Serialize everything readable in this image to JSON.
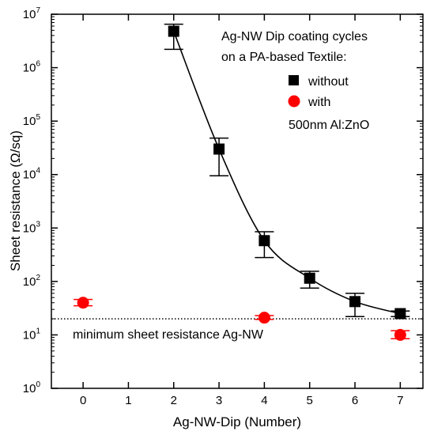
{
  "chart_data": {
    "type": "scatter",
    "xlabel": "Ag-NW-Dip (Number)",
    "ylabel": "Sheet resistance (Ω/sq)",
    "x_ticks": [
      "0",
      "1",
      "2",
      "3",
      "4",
      "5",
      "6",
      "7"
    ],
    "y_ticks": [
      {
        "base": "10",
        "exp": "0"
      },
      {
        "base": "10",
        "exp": "1"
      },
      {
        "base": "10",
        "exp": "2"
      },
      {
        "base": "10",
        "exp": "3"
      },
      {
        "base": "10",
        "exp": "4"
      },
      {
        "base": "10",
        "exp": "5"
      },
      {
        "base": "10",
        "exp": "6"
      },
      {
        "base": "10",
        "exp": "7"
      }
    ],
    "xlim": [
      -0.7,
      7.5
    ],
    "ylim": [
      1,
      10000000
    ],
    "y_scale": "log",
    "legend_title": [
      "Ag-NW Dip coating cycles",
      "on a PA-based Textile:"
    ],
    "legend_extra": "500nm Al:ZnO",
    "legend_position": "top-right",
    "series": [
      {
        "name": "without",
        "marker": "square",
        "color": "#000000",
        "points": [
          {
            "x": 2,
            "y": 4800000,
            "ylow": 2200000,
            "yhigh": 6500000
          },
          {
            "x": 3,
            "y": 30000,
            "ylow": 9500,
            "yhigh": 48000
          },
          {
            "x": 4,
            "y": 580,
            "ylow": 280,
            "yhigh": 850
          },
          {
            "x": 5,
            "y": 115,
            "ylow": 75,
            "yhigh": 155
          },
          {
            "x": 6,
            "y": 42,
            "ylow": 22,
            "yhigh": 60
          },
          {
            "x": 7,
            "y": 25,
            "ylow": 22,
            "yhigh": 28
          }
        ],
        "fit": {
          "x_start": 2,
          "x_end": 7
        }
      },
      {
        "name": "with",
        "marker": "circle",
        "color": "#ff0000",
        "points": [
          {
            "x": 0,
            "y": 40,
            "ylow": 35,
            "yhigh": 46
          },
          {
            "x": 4,
            "y": 21,
            "ylow": 19.5,
            "yhigh": 23
          },
          {
            "x": 7,
            "y": 10,
            "ylow": 8.5,
            "yhigh": 12
          }
        ]
      }
    ],
    "reference_line": {
      "y": 20,
      "label": "minimum sheet resistance Ag-NW",
      "style": "dotted"
    }
  }
}
